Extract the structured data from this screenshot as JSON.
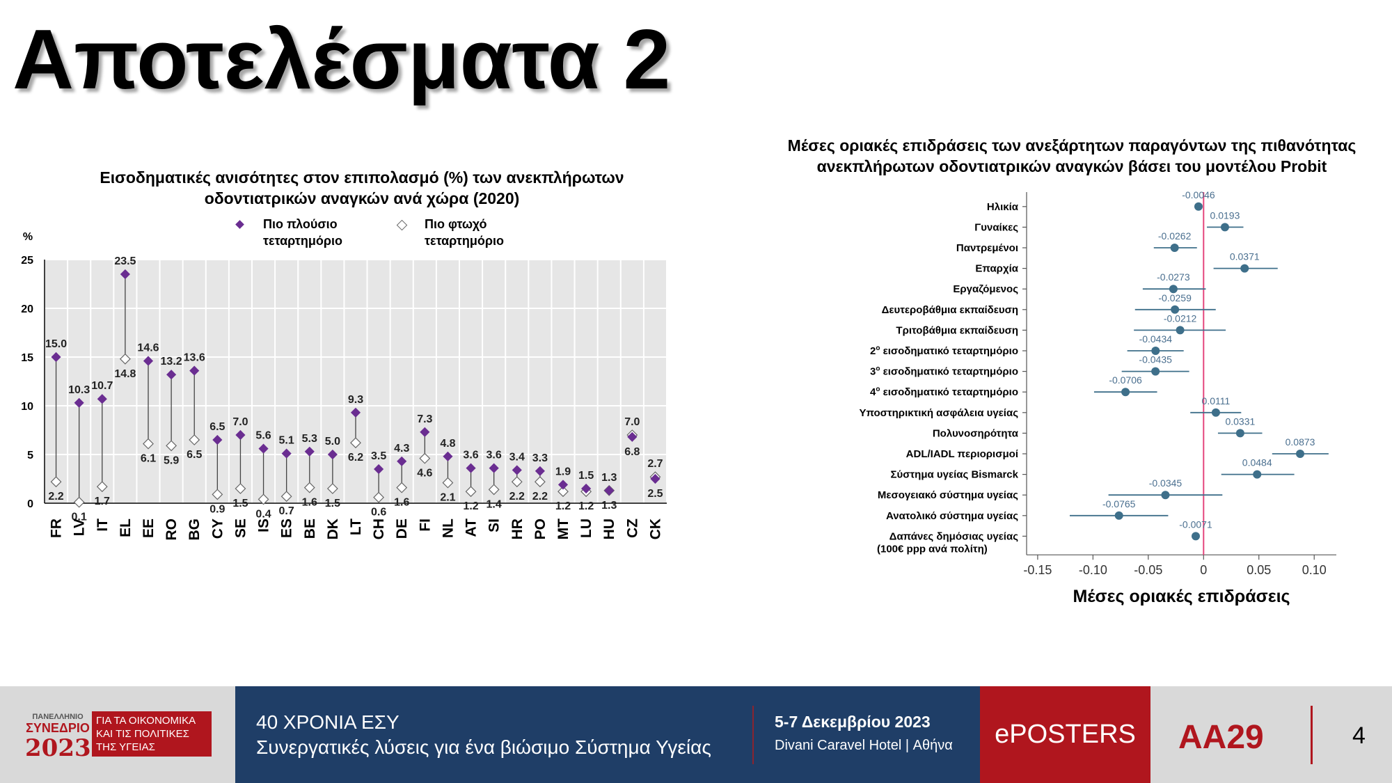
{
  "slide": {
    "title": "Αποτελέσματα 2",
    "page_number": "4"
  },
  "colors": {
    "rich": "#6a2d91",
    "poor_fill": "#ffffff",
    "poor_stroke": "#666666",
    "dot": "#3e6f8a",
    "zero_line": "#e4457c",
    "label_blue": "#4a6f8f",
    "brand_red": "#b0161e",
    "brand_blue": "#1f3e67"
  },
  "legend": {
    "rich_label": "Πιο πλούσιο\nτεταρτημόριο",
    "poor_label": "Πιο φτωχό\nτεταρτημόριο"
  },
  "chart_data": [
    {
      "type": "dumbbell",
      "title": "Εισοδηματικές ανισότητες στον επιπολασμό (%) των ανεκπλήρωτων οδοντιατρικών αναγκών ανά χώρα (2020)",
      "ylabel": "%",
      "ylim": [
        0,
        25
      ],
      "yticks": [
        0,
        5,
        10,
        15,
        20,
        25
      ],
      "grid": true,
      "categories": [
        "FR",
        "LV",
        "IT",
        "EL",
        "EE",
        "RO",
        "BG",
        "CY",
        "SE",
        "IS",
        "ES",
        "BE",
        "DK",
        "LT",
        "CH",
        "DE",
        "FI",
        "NL",
        "AT",
        "SI",
        "HR",
        "PO",
        "MT",
        "LU",
        "HU",
        "CZ",
        "CK"
      ],
      "series": [
        {
          "name": "Πιο πλούσιο τεταρτημόριο",
          "values": [
            15.0,
            10.3,
            10.7,
            23.5,
            14.6,
            13.2,
            13.6,
            6.5,
            7.0,
            5.6,
            5.1,
            5.3,
            5.0,
            9.3,
            3.5,
            4.3,
            7.3,
            4.8,
            3.6,
            3.6,
            3.4,
            3.3,
            1.9,
            1.5,
            1.3,
            6.8,
            2.5
          ]
        },
        {
          "name": "Πιο φτωχό τεταρτημόριο",
          "values": [
            2.2,
            0.1,
            1.7,
            14.8,
            6.1,
            5.9,
            6.5,
            0.9,
            1.5,
            0.4,
            0.7,
            1.6,
            1.5,
            6.2,
            0.6,
            1.6,
            4.6,
            2.1,
            1.2,
            1.4,
            2.2,
            2.2,
            1.2,
            1.2,
            1.3,
            7.0,
            2.7
          ]
        }
      ],
      "rich_labels": [
        "15.0",
        "10.3",
        "10.7",
        "23.5",
        "14.6",
        "13.2",
        "13.6",
        "6.5",
        "7.0",
        "5.6",
        "5.1",
        "5.3",
        "5.0",
        "9.3",
        "3.5",
        "4.3",
        "7.3",
        "4.8",
        "3.6",
        "3.6",
        "3.4",
        "3.3",
        "1.9",
        "1.5",
        "1.3",
        "6.8",
        "2.5"
      ],
      "poor_labels": [
        "2.2",
        "0.1",
        "1.7",
        "14.8",
        "6.1",
        "5.9",
        "6.5",
        "0.9",
        "1.5",
        "0.4",
        "0.7",
        "1.6",
        "1.5",
        "6.2",
        "0.6",
        "1.6",
        "4.6",
        "2.1",
        "1.2",
        "1.4",
        "2.2",
        "2.2",
        "1.2",
        "1.2",
        "1.3",
        "7.0",
        "2.7"
      ]
    },
    {
      "type": "scatter",
      "title": "Μέσες οριακές επιδράσεις των ανεξάρτητων παραγόντων της πιθανότητας ανεκπλήρωτων οδοντιατρικών αναγκών βάσει του μοντέλου Probit",
      "xlabel": "Μέσες οριακές επιδράσεις",
      "xlim": [
        -0.16,
        0.12
      ],
      "xticks": [
        -0.15,
        -0.1,
        -0.05,
        0,
        0.05,
        0.1
      ],
      "xtick_labels": [
        "-0.15",
        "-0.10",
        "-0.05",
        "0",
        "0.05",
        "0.10"
      ],
      "reference_line": 0,
      "rows": [
        {
          "label": "Ηλικία",
          "value": -0.0046,
          "text": "-0.0046",
          "ci": [
            -0.0054,
            -0.0038
          ]
        },
        {
          "label": "Γυναίκες",
          "value": 0.0193,
          "text": "0.0193",
          "ci": [
            0.003,
            0.036
          ]
        },
        {
          "label": "Παντρεμένοι",
          "value": -0.0262,
          "text": "-0.0262",
          "ci": [
            -0.045,
            -0.006
          ]
        },
        {
          "label": "Επαρχία",
          "value": 0.0371,
          "text": "0.0371",
          "ci": [
            0.009,
            0.067
          ]
        },
        {
          "label": "Εργαζόμενος",
          "value": -0.0273,
          "text": "-0.0273",
          "ci": [
            -0.055,
            0.002
          ]
        },
        {
          "label": "Δευτεροβάθμια εκπαίδευση",
          "value": -0.0259,
          "text": "-0.0259",
          "ci": [
            -0.062,
            0.011
          ]
        },
        {
          "label": "Τριτοβάθμια εκπαίδευση",
          "value": -0.0212,
          "text": "-0.0212",
          "ci": [
            -0.063,
            0.02
          ]
        },
        {
          "label": "2ο εισοδηματικό τεταρτημόριο",
          "value": -0.0434,
          "text": "-0.0434",
          "ci": [
            -0.069,
            -0.018
          ]
        },
        {
          "label": "3ο εισοδηματικό τεταρτημόριο",
          "value": -0.0435,
          "text": "-0.0435",
          "ci": [
            -0.074,
            -0.013
          ]
        },
        {
          "label": "4ο εισοδηματικό τεταρτημόριο",
          "value": -0.0706,
          "text": "-0.0706",
          "ci": [
            -0.099,
            -0.042
          ]
        },
        {
          "label": "Υποστηρικτική ασφάλεια υγείας",
          "value": 0.0111,
          "text": "0.0111",
          "ci": [
            -0.012,
            0.034
          ]
        },
        {
          "label": "Πολυνοσηρότητα",
          "value": 0.0331,
          "text": "0.0331",
          "ci": [
            0.013,
            0.053
          ]
        },
        {
          "label": "ADL/IADL περιορισμοί",
          "value": 0.0873,
          "text": "0.0873",
          "ci": [
            0.062,
            0.113
          ]
        },
        {
          "label": "Σύστημα υγείας Bismarck",
          "value": 0.0484,
          "text": "0.0484",
          "ci": [
            0.016,
            0.082
          ]
        },
        {
          "label": "Μεσογειακό σύστημα υγείας",
          "value": -0.0345,
          "text": "-0.0345",
          "ci": [
            -0.086,
            0.017
          ]
        },
        {
          "label": "Ανατολικό σύστημα υγείας",
          "value": -0.0765,
          "text": "-0.0765",
          "ci": [
            -0.121,
            -0.032
          ]
        },
        {
          "label": "Δαπάνες δημόσιας υγείας\n(100€ ppp ανά πολίτη)",
          "value": -0.0071,
          "text": "-0.0071",
          "ci": [
            -0.0085,
            -0.0057
          ]
        }
      ]
    }
  ],
  "footer": {
    "logo_small": "ΠΑΝΕΛΛΗΝΙΟ",
    "logo_congress": "ΣΥΝΕΔΡΙΟ",
    "logo_year": "2023",
    "logo_tagline": "ΓΙΑ ΤΑ ΟΙΚΟΝΟΜΙΚΑ ΚΑΙ ΤΙΣ ΠΟΛΙΤΙΚΕΣ ΤΗΣ ΥΓΕΙΑΣ",
    "line1": "40 ΧΡΟΝΙΑ ΕΣΥ",
    "line2": "Συνεργατικές λύσεις για ένα βιώσιμο Σύστημα Υγείας",
    "date": "5-7 Δεκεμβρίου 2023",
    "venue": "Divani Caravel Hotel | Αθήνα",
    "eposters": "ePOSTERS",
    "code": "ΑΑ29"
  }
}
